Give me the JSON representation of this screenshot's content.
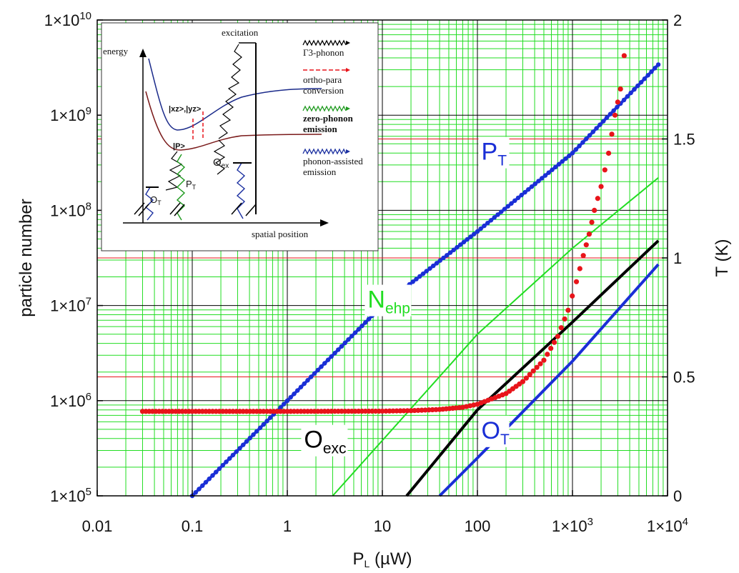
{
  "chart_data": {
    "type": "scatter",
    "x_scale": "log",
    "xlim": [
      0.01,
      10000
    ],
    "ylim_left": [
      100000,
      10000000000
    ],
    "left_scale": "log",
    "ylim_right": [
      0,
      2
    ],
    "grid": true,
    "xlabel": {
      "main": "P",
      "sub": "L",
      "unit": " (µW)"
    },
    "ylabel": "particle number",
    "ylabel_right": "T (K)",
    "x_ticks": [
      {
        "value": 0.01,
        "label": "0.01"
      },
      {
        "value": 0.1,
        "label": "0.1"
      },
      {
        "value": 1,
        "label": "1"
      },
      {
        "value": 10,
        "label": "10"
      },
      {
        "value": 100,
        "label": "100"
      },
      {
        "value": 1000,
        "label": "1×10",
        "exp": "3"
      },
      {
        "value": 10000,
        "label": "1×10",
        "exp": "4"
      }
    ],
    "y_ticks": [
      {
        "value": 100000,
        "label": "1×10",
        "exp": "5"
      },
      {
        "value": 1000000,
        "label": "1×10",
        "exp": "6"
      },
      {
        "value": 10000000,
        "label": "1×10",
        "exp": "7"
      },
      {
        "value": 100000000,
        "label": "1×10",
        "exp": "8"
      },
      {
        "value": 1000000000,
        "label": "1×10",
        "exp": "9"
      },
      {
        "value": 10000000000,
        "label": "1×10",
        "exp": "10"
      }
    ],
    "y_ticks_right": [
      {
        "value": 0,
        "label": "0"
      },
      {
        "value": 0.5,
        "label": "0.5"
      },
      {
        "value": 1,
        "label": "1"
      },
      {
        "value": 1.5,
        "label": "1.5"
      },
      {
        "value": 2,
        "label": "2"
      }
    ],
    "right_axis_gridlines": [
      0.5,
      1.0,
      1.5
    ],
    "series": [
      {
        "name": "P",
        "sub": "T",
        "color": "#1a2fd6",
        "style": "line-dots",
        "axis": "left",
        "points": [
          [
            0.1,
            100000
          ],
          [
            1,
            1000000
          ],
          [
            10,
            10000000
          ],
          [
            100,
            60000000
          ],
          [
            1000,
            400000000
          ],
          [
            8000,
            3400000000
          ]
        ],
        "label_at": [
          110,
          340000000
        ]
      },
      {
        "name": "N",
        "sub": "ehp",
        "color": "#22dd22",
        "style": "line",
        "axis": "left",
        "points": [
          [
            3,
            100000
          ],
          [
            30,
            1300000
          ],
          [
            100,
            5000000
          ],
          [
            1000,
            40000000
          ],
          [
            8000,
            220000000
          ]
        ],
        "label_at": [
          7,
          9500000
        ]
      },
      {
        "name": "O",
        "sub": "exc",
        "color": "#000000",
        "style": "line",
        "axis": "left",
        "points": [
          [
            18,
            100000
          ],
          [
            100,
            800000
          ],
          [
            1000,
            6700000
          ],
          [
            8000,
            48000000
          ]
        ],
        "label_at": [
          1.5,
          320000
        ]
      },
      {
        "name": "O",
        "sub": "T",
        "color": "#1a2fd6",
        "style": "line",
        "axis": "left",
        "points": [
          [
            40,
            100000
          ],
          [
            100,
            250000
          ],
          [
            1000,
            2600000
          ],
          [
            8000,
            27000000
          ]
        ],
        "label_at": [
          110,
          400000
        ]
      },
      {
        "name": "T",
        "color": "#e8141a",
        "style": "dots",
        "axis": "right",
        "points": [
          [
            0.03,
            0.355
          ],
          [
            0.1,
            0.355
          ],
          [
            1,
            0.355
          ],
          [
            10,
            0.356
          ],
          [
            20,
            0.358
          ],
          [
            40,
            0.363
          ],
          [
            70,
            0.372
          ],
          [
            100,
            0.385
          ],
          [
            200,
            0.43
          ],
          [
            300,
            0.48
          ],
          [
            500,
            0.57
          ],
          [
            700,
            0.67
          ],
          [
            900,
            0.78
          ],
          [
            1100,
            0.9
          ],
          [
            1300,
            1.01
          ],
          [
            1500,
            1.1
          ],
          [
            1700,
            1.2
          ],
          [
            2000,
            1.3
          ],
          [
            2400,
            1.44
          ],
          [
            2800,
            1.6
          ],
          [
            3200,
            1.71
          ],
          [
            3500,
            1.85
          ]
        ]
      }
    ]
  },
  "inset": {
    "energy_label": "energy",
    "position_label": "spatial position",
    "excitation_label": "excitation",
    "state_xz_yz": "|xz>,|yz>",
    "state_p": "|P>",
    "o_ex": {
      "main": "O",
      "sub": "ex"
    },
    "o_t": {
      "main": "O",
      "sub": "T"
    },
    "p_t": {
      "main": "P",
      "sub": "T"
    },
    "legend": [
      {
        "lines": [
          "Γ3-phonon"
        ],
        "color": "#000000",
        "style": "wavy"
      },
      {
        "lines": [
          "ortho-para",
          "conversion"
        ],
        "color": "#e8141a",
        "style": "dashed"
      },
      {
        "lines": [
          "zero-phonon",
          "emission"
        ],
        "color": "#1e9a1e",
        "style": "wavy"
      },
      {
        "lines": [
          "phonon-assisted",
          "emission"
        ],
        "color": "#1a2fa0",
        "style": "wavy"
      }
    ]
  }
}
